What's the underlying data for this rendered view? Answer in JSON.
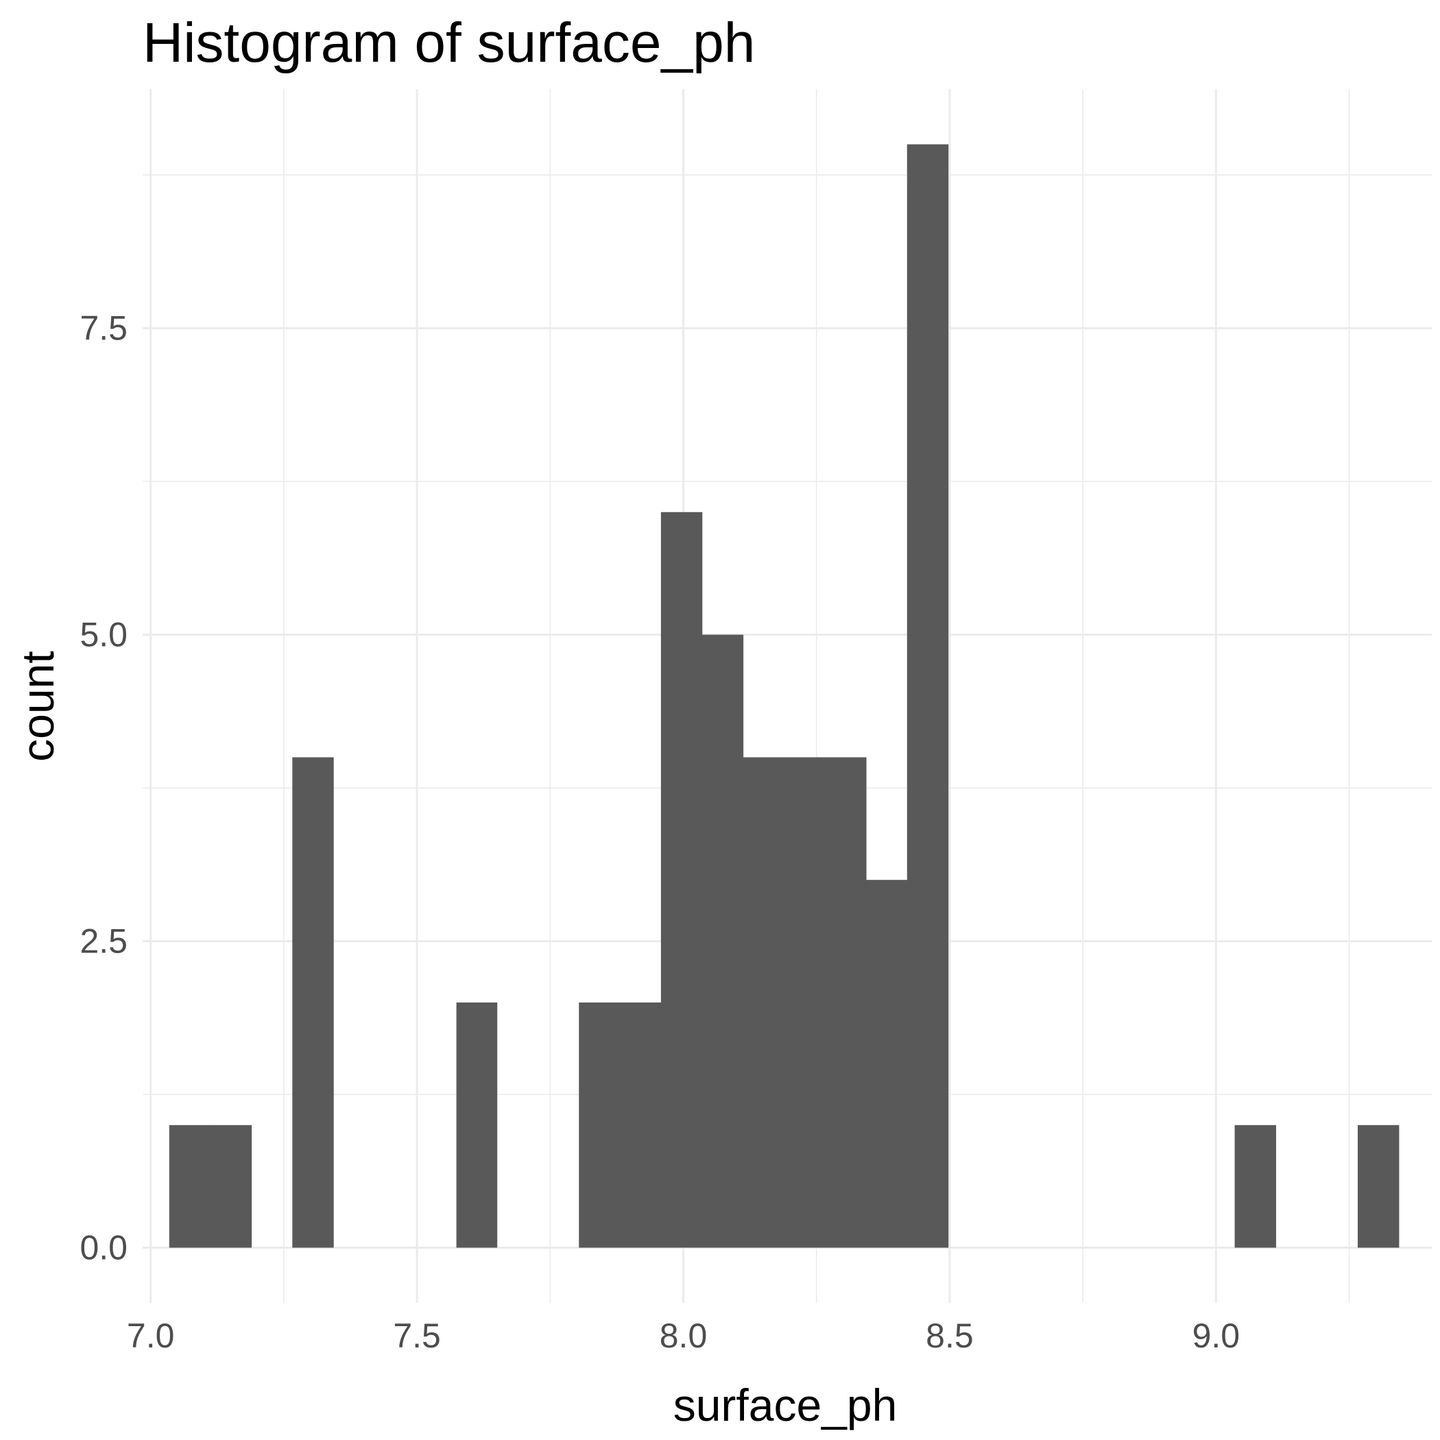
{
  "chart_data": {
    "type": "bar",
    "title": "Histogram of  surface_ph",
    "xlabel": "surface_ph",
    "ylabel": "count",
    "xlim": [
      6.985,
      9.405
    ],
    "ylim": [
      -0.45,
      9.45
    ],
    "x_ticks": [
      {
        "value": 7.0,
        "label": "7.0"
      },
      {
        "value": 7.5,
        "label": "7.5"
      },
      {
        "value": 8.0,
        "label": "8.0"
      },
      {
        "value": 8.5,
        "label": "8.5"
      },
      {
        "value": 9.0,
        "label": "9.0"
      }
    ],
    "y_ticks": [
      {
        "value": 0.0,
        "label": "0.0"
      },
      {
        "value": 2.5,
        "label": "2.5"
      },
      {
        "value": 5.0,
        "label": "5.0"
      },
      {
        "value": 7.5,
        "label": "7.5"
      }
    ],
    "bin_width": 0.0769,
    "bins": [
      {
        "x0": 7.035,
        "x1": 7.112,
        "count": 1
      },
      {
        "x0": 7.112,
        "x1": 7.189,
        "count": 1
      },
      {
        "x0": 7.266,
        "x1": 7.343,
        "count": 4
      },
      {
        "x0": 7.574,
        "x1": 7.65,
        "count": 2
      },
      {
        "x0": 7.804,
        "x1": 7.881,
        "count": 2
      },
      {
        "x0": 7.881,
        "x1": 7.958,
        "count": 2
      },
      {
        "x0": 7.958,
        "x1": 8.035,
        "count": 6
      },
      {
        "x0": 8.035,
        "x1": 8.112,
        "count": 5
      },
      {
        "x0": 8.112,
        "x1": 8.189,
        "count": 4
      },
      {
        "x0": 8.189,
        "x1": 8.266,
        "count": 4
      },
      {
        "x0": 8.266,
        "x1": 8.343,
        "count": 4
      },
      {
        "x0": 8.343,
        "x1": 8.42,
        "count": 3
      },
      {
        "x0": 8.42,
        "x1": 8.497,
        "count": 9
      },
      {
        "x0": 9.035,
        "x1": 9.112,
        "count": 1
      },
      {
        "x0": 9.266,
        "x1": 9.343,
        "count": 1
      }
    ],
    "grid": true,
    "legend": "none",
    "colors": {
      "bar": "#595959",
      "grid": "#ebebeb",
      "tick_text": "#4d4d4d",
      "text": "#000000"
    }
  }
}
